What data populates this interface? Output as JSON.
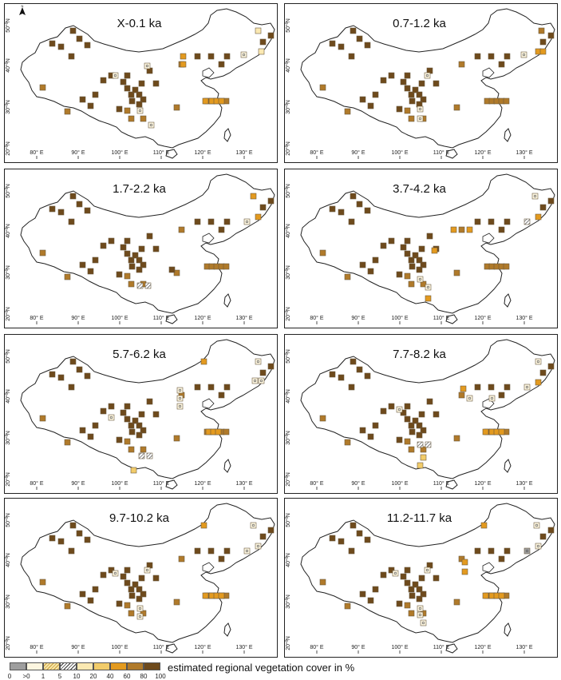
{
  "panels": [
    {
      "title": "X-0.1 ka",
      "north_arrow": true,
      "north_label": "N"
    },
    {
      "title": "0.7-1.2 ka",
      "north_arrow": false
    },
    {
      "title": "1.7-2.2 ka",
      "north_arrow": false
    },
    {
      "title": "3.7-4.2 ka",
      "north_arrow": false
    },
    {
      "title": "5.7-6.2 ka",
      "north_arrow": false
    },
    {
      "title": "7.7-8.2 ka",
      "north_arrow": false
    },
    {
      "title": "9.7-10.2 ka",
      "north_arrow": false
    },
    {
      "title": "11.2-11.7 ka",
      "north_arrow": false
    }
  ],
  "axes": {
    "lon_labels": [
      "80° E",
      "90° E",
      "100° E",
      "110° E",
      "120° E",
      "130° E"
    ],
    "lat_labels": [
      "50° N",
      "40° N",
      "30° N",
      "20° N"
    ]
  },
  "legend": {
    "title": "estimated regional vegetation cover in %",
    "ticks": [
      "0",
      ">0",
      "1",
      "5",
      "10",
      "20",
      "40",
      "60",
      "80",
      "100"
    ],
    "classes": [
      {
        "name": "0",
        "color": "#9e9e9e"
      },
      {
        "name": ">0-1",
        "color": "#fdf6e0"
      },
      {
        "name": "1-5",
        "color": "#f7e6a6",
        "pattern": "hatch-light"
      },
      {
        "name": "5-10",
        "color": "#ffffff",
        "pattern": "hatch-dark"
      },
      {
        "name": "10-20",
        "color": "#fbe9b2"
      },
      {
        "name": "20-40",
        "color": "#f2cc6a"
      },
      {
        "name": "40-60",
        "color": "#e39a1f"
      },
      {
        "name": "60-80",
        "color": "#b07a2a"
      },
      {
        "name": "80-100",
        "color": "#6e4a1c"
      }
    ]
  }
}
